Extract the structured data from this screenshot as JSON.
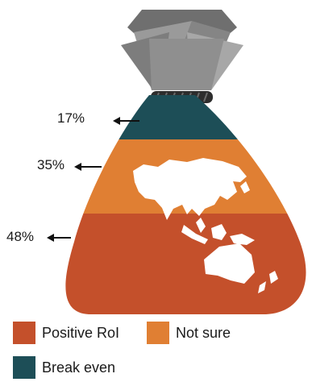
{
  "chart_data": {
    "type": "bar",
    "categories": [
      "Break even",
      "Not sure",
      "Positive RoI"
    ],
    "values": [
      17,
      35,
      48
    ],
    "value_labels": [
      "17%",
      "35%",
      "48%"
    ],
    "series": [
      {
        "name": "Break even",
        "value": 17,
        "color": "#1d4e57"
      },
      {
        "name": "Not sure",
        "value": 35,
        "color": "#e07f33"
      },
      {
        "name": "Positive RoI",
        "value": 48,
        "color": "#c4502b"
      }
    ],
    "legend_position": "bottom-left",
    "stacking": "stacked-vertical-in-money-bag-shape"
  },
  "legend": [
    {
      "label": "Positive RoI",
      "color": "#c4502b"
    },
    {
      "label": "Not sure",
      "color": "#e07f33"
    },
    {
      "label": "Break even",
      "color": "#1d4e57"
    }
  ],
  "decoration": {
    "bag_tie_color": "#8f8f8f",
    "rope_color": "#2d2d2d",
    "map_icon": "asia-oceania-map-silhouette"
  }
}
